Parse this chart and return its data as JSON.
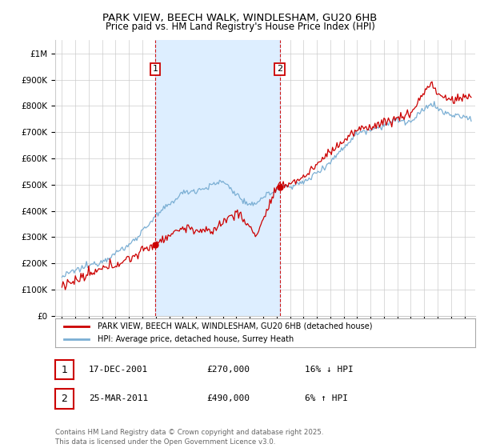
{
  "title1": "PARK VIEW, BEECH WALK, WINDLESHAM, GU20 6HB",
  "title2": "Price paid vs. HM Land Registry's House Price Index (HPI)",
  "yticks": [
    0,
    100000,
    200000,
    300000,
    400000,
    500000,
    600000,
    700000,
    800000,
    900000,
    1000000
  ],
  "ytick_labels": [
    "£0",
    "£100K",
    "£200K",
    "£300K",
    "£400K",
    "£500K",
    "£600K",
    "£700K",
    "£800K",
    "£900K",
    "£1M"
  ],
  "xmin": 1994.5,
  "xmax": 2025.8,
  "ymin": 0,
  "ymax": 1050000,
  "sale1_x": 2001.96,
  "sale1_y": 270000,
  "sale2_x": 2011.23,
  "sale2_y": 490000,
  "legend_line1": "PARK VIEW, BEECH WALK, WINDLESHAM, GU20 6HB (detached house)",
  "legend_line2": "HPI: Average price, detached house, Surrey Heath",
  "ann1_label": "1",
  "ann1_date": "17-DEC-2001",
  "ann1_price": "£270,000",
  "ann1_hpi": "16% ↓ HPI",
  "ann2_label": "2",
  "ann2_date": "25-MAR-2011",
  "ann2_price": "£490,000",
  "ann2_hpi": "6% ↑ HPI",
  "footnote": "Contains HM Land Registry data © Crown copyright and database right 2025.\nThis data is licensed under the Open Government Licence v3.0.",
  "red_color": "#cc0000",
  "blue_color": "#7bafd4",
  "shading_color": "#ddeeff",
  "grid_color": "#cccccc",
  "background_color": "#ffffff"
}
